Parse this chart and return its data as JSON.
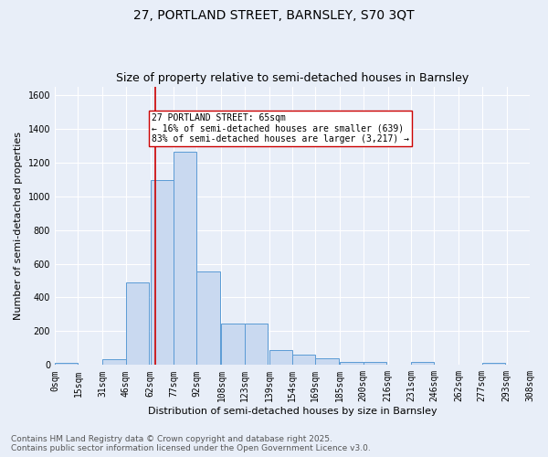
{
  "title1": "27, PORTLAND STREET, BARNSLEY, S70 3QT",
  "title2": "Size of property relative to semi-detached houses in Barnsley",
  "xlabel": "Distribution of semi-detached houses by size in Barnsley",
  "ylabel": "Number of semi-detached properties",
  "footer1": "Contains HM Land Registry data © Crown copyright and database right 2025.",
  "footer2": "Contains public sector information licensed under the Open Government Licence v3.0.",
  "bar_left_edges": [
    0,
    15,
    31,
    46,
    62,
    77,
    92,
    108,
    123,
    139,
    154,
    169,
    185,
    200,
    216,
    231,
    246,
    262,
    277,
    293
  ],
  "bar_heights": [
    10,
    0,
    35,
    490,
    1095,
    1265,
    555,
    245,
    245,
    90,
    60,
    37,
    20,
    20,
    0,
    18,
    0,
    0,
    15,
    0
  ],
  "bin_width": 15,
  "bar_color": "#c9d9f0",
  "bar_edge_color": "#5b9bd5",
  "tick_labels": [
    "0sqm",
    "15sqm",
    "31sqm",
    "46sqm",
    "62sqm",
    "77sqm",
    "92sqm",
    "108sqm",
    "123sqm",
    "139sqm",
    "154sqm",
    "169sqm",
    "185sqm",
    "200sqm",
    "216sqm",
    "231sqm",
    "246sqm",
    "262sqm",
    "277sqm",
    "293sqm",
    "308sqm"
  ],
  "vline_x": 65,
  "vline_color": "#cc0000",
  "annotation_text": "27 PORTLAND STREET: 65sqm\n← 16% of semi-detached houses are smaller (639)\n83% of semi-detached houses are larger (3,217) →",
  "annotation_box_color": "#ffffff",
  "annotation_box_edge": "#cc0000",
  "ylim": [
    0,
    1650
  ],
  "yticks": [
    0,
    200,
    400,
    600,
    800,
    1000,
    1200,
    1400,
    1600
  ],
  "background_color": "#e8eef8",
  "grid_color": "#ffffff",
  "title_fontsize": 10,
  "subtitle_fontsize": 9,
  "axis_fontsize": 8,
  "tick_fontsize": 7,
  "footer_fontsize": 6.5
}
